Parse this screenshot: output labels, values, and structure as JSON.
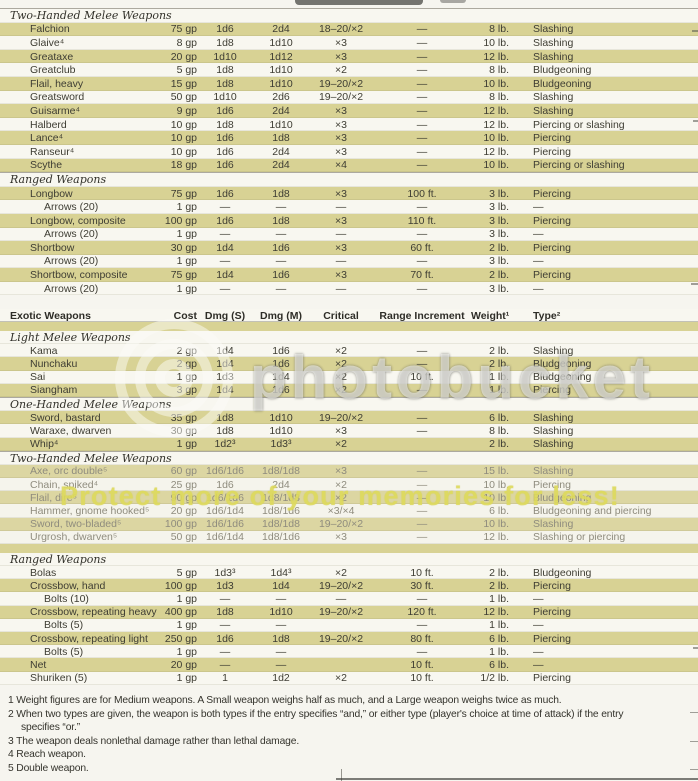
{
  "watermarks": {
    "brand": "photobucket",
    "tagline": "Protect more of your memories for less!"
  },
  "table1_rows": [
    {
      "kind": "section",
      "label": "Two-Handed Melee Weapons",
      "bg": "white"
    },
    {
      "kind": "item",
      "bg": "khaki",
      "name": "Falchion",
      "cost": "75 gp",
      "dmgS": "1d6",
      "dmgM": "2d4",
      "crit": "18–20/×2",
      "range": "—",
      "weight": "8 lb.",
      "type": "Slashing"
    },
    {
      "kind": "item",
      "bg": "white",
      "name": "Glaive⁴",
      "cost": "8 gp",
      "dmgS": "1d8",
      "dmgM": "1d10",
      "crit": "×3",
      "range": "—",
      "weight": "10 lb.",
      "type": "Slashing"
    },
    {
      "kind": "item",
      "bg": "khaki",
      "name": "Greataxe",
      "cost": "20 gp",
      "dmgS": "1d10",
      "dmgM": "1d12",
      "crit": "×3",
      "range": "—",
      "weight": "12 lb.",
      "type": "Slashing"
    },
    {
      "kind": "item",
      "bg": "white",
      "name": "Greatclub",
      "cost": "5 gp",
      "dmgS": "1d8",
      "dmgM": "1d10",
      "crit": "×2",
      "range": "—",
      "weight": "8 lb.",
      "type": "Bludgeoning"
    },
    {
      "kind": "item",
      "bg": "khaki",
      "name": "Flail, heavy",
      "cost": "15 gp",
      "dmgS": "1d8",
      "dmgM": "1d10",
      "crit": "19–20/×2",
      "range": "—",
      "weight": "10 lb.",
      "type": "Bludgeoning"
    },
    {
      "kind": "item",
      "bg": "white",
      "name": "Greatsword",
      "cost": "50 gp",
      "dmgS": "1d10",
      "dmgM": "2d6",
      "crit": "19–20/×2",
      "range": "—",
      "weight": "8 lb.",
      "type": "Slashing"
    },
    {
      "kind": "item",
      "bg": "khaki",
      "name": "Guisarme⁴",
      "cost": "9 gp",
      "dmgS": "1d6",
      "dmgM": "2d4",
      "crit": "×3",
      "range": "—",
      "weight": "12 lb.",
      "type": "Slashing"
    },
    {
      "kind": "item",
      "bg": "white",
      "name": "Halberd",
      "cost": "10 gp",
      "dmgS": "1d8",
      "dmgM": "1d10",
      "crit": "×3",
      "range": "—",
      "weight": "12 lb.",
      "type": "Piercing or slashing"
    },
    {
      "kind": "item",
      "bg": "khaki",
      "name": "Lance⁴",
      "cost": "10 gp",
      "dmgS": "1d6",
      "dmgM": "1d8",
      "crit": "×3",
      "range": "—",
      "weight": "10 lb.",
      "type": "Piercing"
    },
    {
      "kind": "item",
      "bg": "white",
      "name": "Ranseur⁴",
      "cost": "10 gp",
      "dmgS": "1d6",
      "dmgM": "2d4",
      "crit": "×3",
      "range": "—",
      "weight": "12 lb.",
      "type": "Piercing"
    },
    {
      "kind": "item",
      "bg": "khaki",
      "name": "Scythe",
      "cost": "18 gp",
      "dmgS": "1d6",
      "dmgM": "2d4",
      "crit": "×4",
      "range": "—",
      "weight": "10 lb.",
      "type": "Piercing or slashing"
    },
    {
      "kind": "section",
      "label": "Ranged Weapons",
      "bg": "white"
    },
    {
      "kind": "item",
      "bg": "khaki",
      "name": "Longbow",
      "cost": "75 gp",
      "dmgS": "1d6",
      "dmgM": "1d8",
      "crit": "×3",
      "range": "100 ft.",
      "weight": "3 lb.",
      "type": "Piercing"
    },
    {
      "kind": "item",
      "bg": "white",
      "indent": true,
      "name": "Arrows (20)",
      "cost": "1 gp",
      "dmgS": "—",
      "dmgM": "—",
      "crit": "—",
      "range": "—",
      "weight": "3 lb.",
      "type": "—"
    },
    {
      "kind": "item",
      "bg": "khaki",
      "name": "Longbow, composite",
      "cost": "100 gp",
      "dmgS": "1d6",
      "dmgM": "1d8",
      "crit": "×3",
      "range": "110 ft.",
      "weight": "3 lb.",
      "type": "Piercing"
    },
    {
      "kind": "item",
      "bg": "white",
      "indent": true,
      "name": "Arrows (20)",
      "cost": "1 gp",
      "dmgS": "—",
      "dmgM": "—",
      "crit": "—",
      "range": "—",
      "weight": "3 lb.",
      "type": "—"
    },
    {
      "kind": "item",
      "bg": "khaki",
      "name": "Shortbow",
      "cost": "30 gp",
      "dmgS": "1d4",
      "dmgM": "1d6",
      "crit": "×3",
      "range": "60 ft.",
      "weight": "2 lb.",
      "type": "Piercing"
    },
    {
      "kind": "item",
      "bg": "white",
      "indent": true,
      "name": "Arrows (20)",
      "cost": "1 gp",
      "dmgS": "—",
      "dmgM": "—",
      "crit": "—",
      "range": "—",
      "weight": "3 lb.",
      "type": "—"
    },
    {
      "kind": "item",
      "bg": "khaki",
      "name": "Shortbow, composite",
      "cost": "75 gp",
      "dmgS": "1d4",
      "dmgM": "1d6",
      "crit": "×3",
      "range": "70 ft.",
      "weight": "2 lb.",
      "type": "Piercing"
    },
    {
      "kind": "item",
      "bg": "white",
      "indent": true,
      "name": "Arrows (20)",
      "cost": "1 gp",
      "dmgS": "—",
      "dmgM": "—",
      "crit": "—",
      "range": "—",
      "weight": "3 lb.",
      "type": "—"
    }
  ],
  "table2_rows": [
    {
      "kind": "header",
      "bg": "white",
      "name": "Exotic Weapons",
      "cost": "Cost",
      "dmgS": "Dmg (S)",
      "dmgM": "Dmg (M)",
      "crit": "Critical",
      "range": "Range Increment",
      "weight": "Weight¹",
      "type": "Type²"
    },
    {
      "kind": "section",
      "label": "Light Melee Weapons",
      "bg": "band"
    },
    {
      "kind": "item",
      "bg": "white",
      "name": "Kama",
      "cost": "2 gp",
      "dmgS": "1d4",
      "dmgM": "1d6",
      "crit": "×2",
      "range": "—",
      "weight": "2 lb.",
      "type": "Slashing"
    },
    {
      "kind": "item",
      "bg": "khaki",
      "name": "Nunchaku",
      "cost": "2 gp",
      "dmgS": "1d4",
      "dmgM": "1d6",
      "crit": "×2",
      "range": "—",
      "weight": "2 lb.",
      "type": "Bludgeoning"
    },
    {
      "kind": "item",
      "bg": "white",
      "name": "Sai",
      "cost": "1 gp",
      "dmgS": "1d3",
      "dmgM": "1d4",
      "crit": "×2",
      "range": "10 ft.",
      "weight": "1 lb.",
      "type": "Bludgeoning"
    },
    {
      "kind": "item",
      "bg": "khaki",
      "name": "Siangham",
      "cost": "3 gp",
      "dmgS": "1d4",
      "dmgM": "1d6",
      "crit": "×2",
      "range": "—",
      "weight": "1 lb.",
      "type": "Piercing"
    },
    {
      "kind": "section",
      "label": "One-Handed Melee Weapons",
      "bg": "white"
    },
    {
      "kind": "item",
      "bg": "khaki",
      "name": "Sword, bastard",
      "cost": "35 gp",
      "dmgS": "1d8",
      "dmgM": "1d10",
      "crit": "19–20/×2",
      "range": "—",
      "weight": "6 lb.",
      "type": "Slashing"
    },
    {
      "kind": "item",
      "bg": "white",
      "name": "Waraxe, dwarven",
      "cost": "30 gp",
      "dmgS": "1d8",
      "dmgM": "1d10",
      "crit": "×3",
      "range": "—",
      "weight": "8 lb.",
      "type": "Slashing"
    },
    {
      "kind": "item",
      "bg": "khaki",
      "name": "Whip⁴",
      "cost": "1 gp",
      "dmgS": "1d2³",
      "dmgM": "1d3³",
      "crit": "×2",
      "range": "",
      "weight": "2 lb.",
      "type": "Slashing"
    },
    {
      "kind": "section",
      "label": "Two-Handed Melee Weapons",
      "bg": "white"
    },
    {
      "kind": "item",
      "bg": "khaki",
      "faded": true,
      "name": "Axe, orc double⁵",
      "cost": "60 gp",
      "dmgS": "1d6/1d6",
      "dmgM": "1d8/1d8",
      "crit": "×3",
      "range": "—",
      "weight": "15 lb.",
      "type": "Slashing"
    },
    {
      "kind": "item",
      "bg": "white",
      "faded": true,
      "name": "Chain, spiked⁴",
      "cost": "25 gp",
      "dmgS": "1d6",
      "dmgM": "2d4",
      "crit": "×2",
      "range": "—",
      "weight": "10 lb.",
      "type": "Piercing"
    },
    {
      "kind": "item",
      "bg": "khaki",
      "faded": true,
      "name": "Flail, dire⁵",
      "cost": "90 gp",
      "dmgS": "1d6/1d6",
      "dmgM": "1d8/1d8",
      "crit": "×2",
      "range": "—",
      "weight": "10 lb.",
      "type": "Bludgeoning"
    },
    {
      "kind": "item",
      "bg": "white",
      "faded": true,
      "name": "Hammer, gnome hooked⁵",
      "cost": "20 gp",
      "dmgS": "1d6/1d4",
      "dmgM": "1d8/1d6",
      "crit": "×3/×4",
      "range": "—",
      "weight": "6 lb.",
      "type": "Bludgeoning and piercing"
    },
    {
      "kind": "item",
      "bg": "khaki",
      "faded": true,
      "name": "Sword, two-bladed⁵",
      "cost": "100 gp",
      "dmgS": "1d6/1d6",
      "dmgM": "1d8/1d8",
      "crit": "19–20/×2",
      "range": "—",
      "weight": "10 lb.",
      "type": "Slashing"
    },
    {
      "kind": "item",
      "bg": "white",
      "faded": true,
      "name": "Urgrosh, dwarven⁵",
      "cost": "50 gp",
      "dmgS": "1d6/1d4",
      "dmgM": "1d8/1d6",
      "crit": "×3",
      "range": "—",
      "weight": "12 lb.",
      "type": "Slashing or piercing"
    },
    {
      "kind": "section",
      "label": "Ranged Weapons",
      "bg": "band"
    },
    {
      "kind": "item",
      "bg": "white",
      "name": "Bolas",
      "cost": "5 gp",
      "dmgS": "1d3³",
      "dmgM": "1d4³",
      "crit": "×2",
      "range": "10 ft.",
      "weight": "2 lb.",
      "type": "Bludgeoning"
    },
    {
      "kind": "item",
      "bg": "khaki",
      "name": "Crossbow, hand",
      "cost": "100 gp",
      "dmgS": "1d3",
      "dmgM": "1d4",
      "crit": "19–20/×2",
      "range": "30 ft.",
      "weight": "2 lb.",
      "type": "Piercing"
    },
    {
      "kind": "item",
      "bg": "white",
      "indent": true,
      "name": "Bolts (10)",
      "cost": "1 gp",
      "dmgS": "—",
      "dmgM": "—",
      "crit": "—",
      "range": "—",
      "weight": "1 lb.",
      "type": "—"
    },
    {
      "kind": "item",
      "bg": "khaki",
      "name": "Crossbow, repeating heavy",
      "cost": "400 gp",
      "dmgS": "1d8",
      "dmgM": "1d10",
      "crit": "19–20/×2",
      "range": "120 ft.",
      "weight": "12 lb.",
      "type": "Piercing"
    },
    {
      "kind": "item",
      "bg": "white",
      "indent": true,
      "name": "Bolts (5)",
      "cost": "1 gp",
      "dmgS": "—",
      "dmgM": "—",
      "crit": "",
      "range": "—",
      "weight": "1 lb.",
      "type": "—"
    },
    {
      "kind": "item",
      "bg": "khaki",
      "name": "Crossbow, repeating light",
      "cost": "250 gp",
      "dmgS": "1d6",
      "dmgM": "1d8",
      "crit": "19–20/×2",
      "range": "80 ft.",
      "weight": "6 lb.",
      "type": "Piercing"
    },
    {
      "kind": "item",
      "bg": "white",
      "indent": true,
      "name": "Bolts (5)",
      "cost": "1 gp",
      "dmgS": "—",
      "dmgM": "—",
      "crit": "",
      "range": "—",
      "weight": "1 lb.",
      "type": "—"
    },
    {
      "kind": "item",
      "bg": "khaki",
      "name": "Net",
      "cost": "20 gp",
      "dmgS": "—",
      "dmgM": "—",
      "crit": "",
      "range": "10 ft.",
      "weight": "6 lb.",
      "type": "—"
    },
    {
      "kind": "item",
      "bg": "white",
      "name": "Shuriken (5)",
      "cost": "1 gp",
      "dmgS": "1",
      "dmgM": "1d2",
      "crit": "×2",
      "range": "10 ft.",
      "weight": "1/2 lb.",
      "type": "Piercing"
    }
  ],
  "footnotes": [
    {
      "text": "1 Weight figures are for Medium weapons. A Small weapon weighs half as much, and a Large weapon weighs twice as much.",
      "indent": false
    },
    {
      "text": "2 When two types are given, the weapon is both types if the entry specifies “and,” or either type (player's choice at time of attack) if the entry",
      "indent": false
    },
    {
      "text": "specifies “or.”",
      "indent": true
    },
    {
      "text": "3 The weapon deals nonlethal damage rather than lethal damage.",
      "indent": false
    },
    {
      "text": "4 Reach weapon.",
      "indent": false
    },
    {
      "text": "5 Double weapon.",
      "indent": false
    }
  ]
}
